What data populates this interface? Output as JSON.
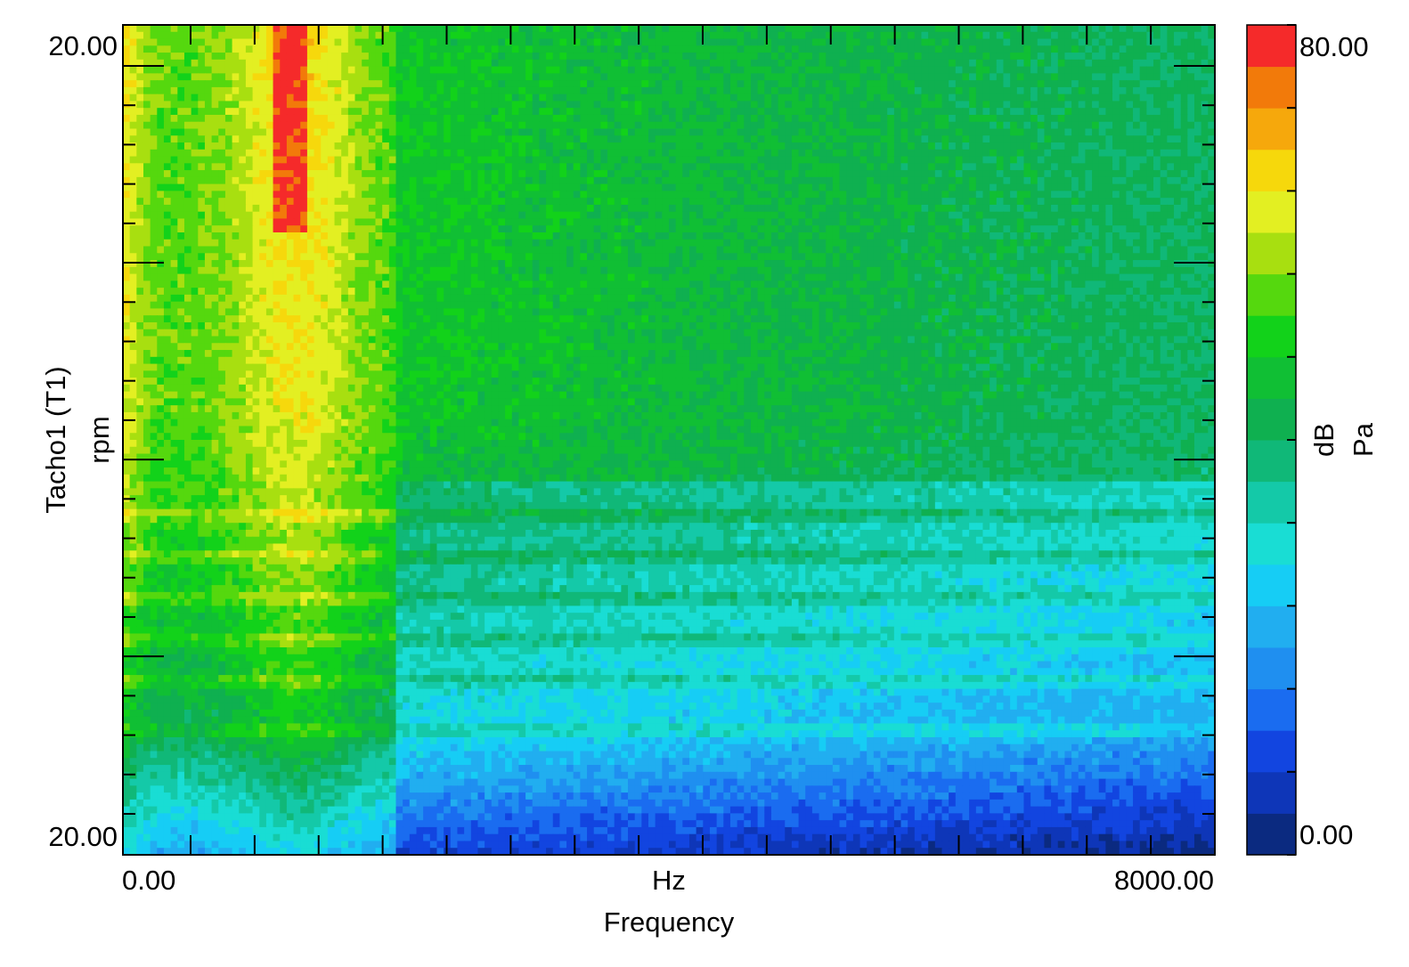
{
  "chart_data": {
    "type": "heatmap",
    "title": "",
    "xlabel": "Frequency",
    "x_unit": "Hz",
    "ylabel": "Tacho1 (T1)",
    "y_unit": "rpm",
    "x_tick_labels": [
      "0.00",
      "8000.00"
    ],
    "y_tick_labels": [
      "20.00",
      "20.00"
    ],
    "x_range": [
      0,
      8000
    ],
    "colorbar": {
      "label": "dB",
      "unit": "Pa",
      "min": 0,
      "max": 80,
      "tick_labels": [
        "80.00",
        "0.00"
      ],
      "colors": [
        "#0b2a80",
        "#0e36b8",
        "#1245e0",
        "#1a6cf0",
        "#1f8ff0",
        "#21aef0",
        "#16cdf5",
        "#19ddd4",
        "#14c9a8",
        "#10b878",
        "#0fb050",
        "#10bf34",
        "#12d21a",
        "#55d80e",
        "#a8df10",
        "#e3ef22",
        "#f6d80c",
        "#f6a80c",
        "#f27a0a",
        "#f52a2a"
      ]
    },
    "grid": false,
    "description_of_field": "Band levels (dB, 0-80) by frequency column and rpm row"
  }
}
